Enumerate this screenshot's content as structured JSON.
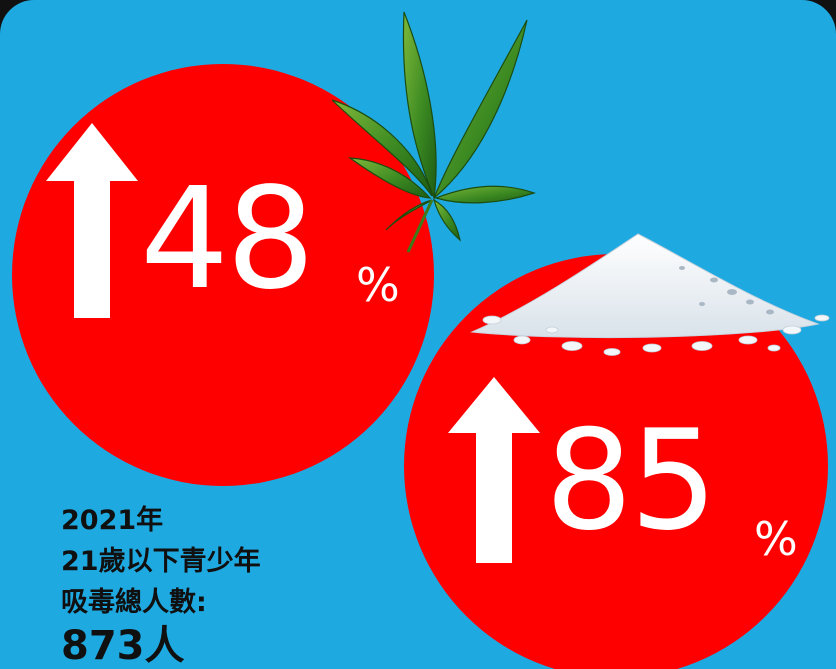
{
  "stat_left": {
    "value": "48",
    "unit": "%",
    "direction": "up",
    "circle_color": "#ff0000"
  },
  "stat_right": {
    "value": "85",
    "unit": "%",
    "direction": "up",
    "circle_color": "#ff0000"
  },
  "summary": {
    "line1": "2021年",
    "line2": "21歲以下青少年",
    "line3": "吸毒總人數:",
    "total": "873人"
  },
  "colors": {
    "background": "#1fa9e1",
    "accent": "#ff0000",
    "text": "#101010"
  },
  "images": {
    "left": "cannabis-leaf",
    "right": "powder-pile"
  }
}
